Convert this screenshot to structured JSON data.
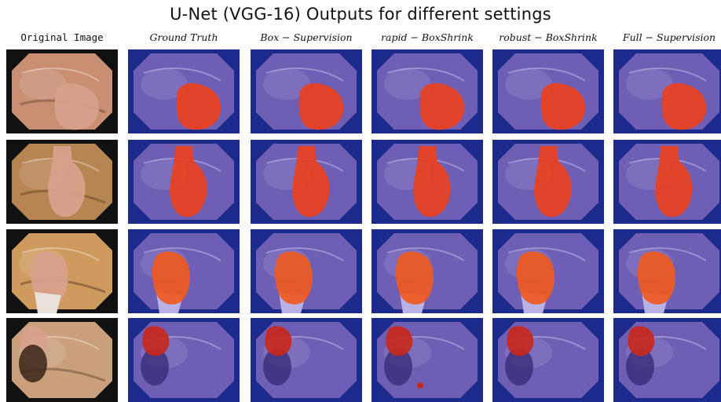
{
  "title": "U-Net (VGG-16) Outputs for different settings",
  "columns": [
    {
      "label": "Original Image",
      "kind": "original"
    },
    {
      "label": "Ground Truth",
      "kind": "overlay"
    },
    {
      "label": "Box − Supervision",
      "kind": "overlay"
    },
    {
      "label": "rapid − BoxShrink",
      "kind": "overlay"
    },
    {
      "label": "robust − BoxShrink",
      "kind": "overlay"
    },
    {
      "label": "Full − Supervision",
      "kind": "overlay"
    }
  ],
  "rows": [
    {
      "id": "row-1",
      "tissue": "#c98f72",
      "dark": "#4a2a1c",
      "mask": "#e8401c"
    },
    {
      "id": "row-2",
      "tissue": "#b78552",
      "dark": "#3e2914",
      "mask": "#e8401c"
    },
    {
      "id": "row-3",
      "tissue": "#cf9a5e",
      "dark": "#2a1a10",
      "mask": "#ee5a20"
    },
    {
      "id": "row-4",
      "tissue": "#caa07c",
      "dark": "#3a2416",
      "mask": "#c8281c"
    }
  ],
  "colors": {
    "overlay_frame": "#1c2a8c",
    "overlay_tissue": "#6f5fb4",
    "overlay_light": "#8b7fc8"
  }
}
